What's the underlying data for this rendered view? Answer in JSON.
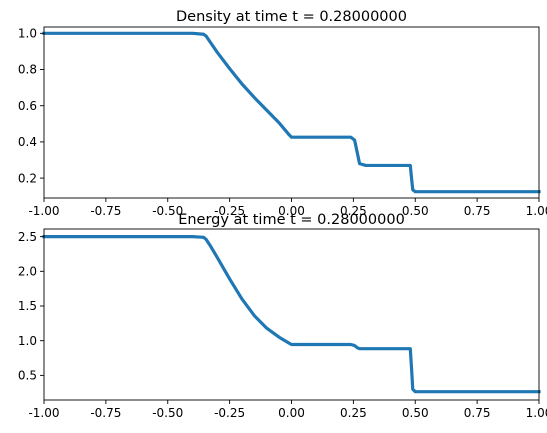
{
  "chart_data": [
    {
      "type": "line",
      "title": "Density at time t =     0.28000000",
      "xlim": [
        -1.0,
        1.0
      ],
      "ylim": [
        0.09,
        1.035
      ],
      "xticks": [
        "-1.00",
        "-0.75",
        "-0.50",
        "-0.25",
        "0.00",
        "0.25",
        "0.50",
        "0.75",
        "1.00"
      ],
      "xtick_values": [
        -1.0,
        -0.75,
        -0.5,
        -0.25,
        0.0,
        0.25,
        0.5,
        0.75,
        1.0
      ],
      "yticks": [
        "0.2",
        "0.4",
        "0.6",
        "0.8",
        "1.0"
      ],
      "ytick_values": [
        0.2,
        0.4,
        0.6,
        0.8,
        1.0
      ],
      "color": "#1f77b4",
      "series": [
        {
          "x": [
            -1.0,
            -0.4,
            -0.355,
            -0.345,
            -0.33,
            -0.3,
            -0.25,
            -0.2,
            -0.15,
            -0.1,
            -0.05,
            -0.01,
            0.0,
            0.1,
            0.24,
            0.255,
            0.265,
            0.275,
            0.3,
            0.48,
            0.485,
            0.49,
            0.5,
            1.0
          ],
          "y": [
            1.0,
            1.0,
            0.995,
            0.985,
            0.955,
            0.895,
            0.805,
            0.72,
            0.645,
            0.575,
            0.505,
            0.44,
            0.426,
            0.426,
            0.426,
            0.41,
            0.345,
            0.28,
            0.27,
            0.27,
            0.2,
            0.135,
            0.125,
            0.125
          ]
        }
      ]
    },
    {
      "type": "line",
      "title": "Energy at time t =     0.28000000",
      "xlim": [
        -1.0,
        1.0
      ],
      "ylim": [
        0.145,
        2.61
      ],
      "xticks": [
        "-1.00",
        "-0.75",
        "-0.50",
        "-0.25",
        "0.00",
        "0.25",
        "0.50",
        "0.75",
        "1.00"
      ],
      "xtick_values": [
        -1.0,
        -0.75,
        -0.5,
        -0.25,
        0.0,
        0.25,
        0.5,
        0.75,
        1.0
      ],
      "yticks": [
        "0.5",
        "1.0",
        "1.5",
        "2.0",
        "2.5"
      ],
      "ytick_values": [
        0.5,
        1.0,
        1.5,
        2.0,
        2.5
      ],
      "color": "#1f77b4",
      "series": [
        {
          "x": [
            -1.0,
            -0.4,
            -0.355,
            -0.345,
            -0.33,
            -0.3,
            -0.25,
            -0.2,
            -0.15,
            -0.1,
            -0.05,
            -0.01,
            0.0,
            0.1,
            0.24,
            0.255,
            0.265,
            0.275,
            0.3,
            0.48,
            0.485,
            0.49,
            0.5,
            1.0
          ],
          "y": [
            2.5,
            2.5,
            2.49,
            2.46,
            2.38,
            2.2,
            1.89,
            1.6,
            1.36,
            1.18,
            1.05,
            0.965,
            0.945,
            0.945,
            0.945,
            0.93,
            0.9,
            0.885,
            0.885,
            0.885,
            0.6,
            0.3,
            0.265,
            0.265
          ]
        }
      ]
    }
  ]
}
